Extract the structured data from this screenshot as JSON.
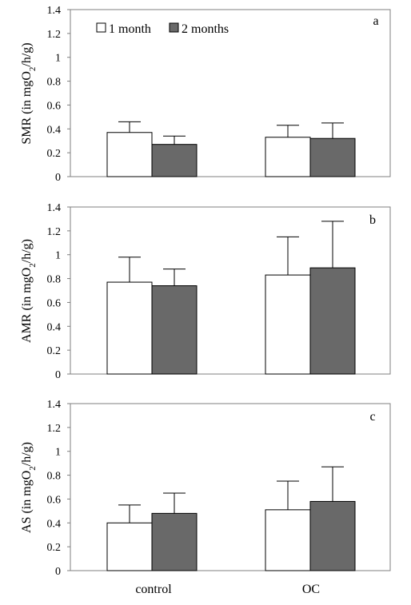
{
  "colors": {
    "one_month": "#ffffff",
    "two_months": "#696969",
    "axis": "#7f7f7f",
    "edge": "#000000"
  },
  "legend": {
    "placement": "top-left",
    "entries": [
      "1 month",
      "2 months"
    ]
  },
  "chart_data": [
    {
      "type": "bar",
      "panel_label": "a",
      "ylabel": "SMR (in mgO2/h/g)",
      "ylabel_parts": {
        "pre": "SMR (in mgO",
        "sub": "2",
        "post": "/h/g)"
      },
      "categories": [
        "control",
        "OC"
      ],
      "ylim": [
        0,
        1.4
      ],
      "yticks": [
        "0",
        "0.2",
        "0.4",
        "0.6",
        "0.8",
        "1",
        "1.2",
        "1.4"
      ],
      "series": [
        {
          "name": "1 month",
          "values": [
            0.37,
            0.33
          ],
          "errors": [
            0.09,
            0.1
          ]
        },
        {
          "name": "2 months",
          "values": [
            0.27,
            0.32
          ],
          "errors": [
            0.07,
            0.13
          ]
        }
      ]
    },
    {
      "type": "bar",
      "panel_label": "b",
      "ylabel": "AMR (in mgO2/h/g)",
      "ylabel_parts": {
        "pre": "AMR (in mgO",
        "sub": "2",
        "post": "/h/g)"
      },
      "categories": [
        "control",
        "OC"
      ],
      "ylim": [
        0,
        1.4
      ],
      "yticks": [
        "0",
        "0.2",
        "0.4",
        "0.6",
        "0.8",
        "1",
        "1.2",
        "1.4"
      ],
      "series": [
        {
          "name": "1 month",
          "values": [
            0.77,
            0.83
          ],
          "errors": [
            0.21,
            0.32
          ]
        },
        {
          "name": "2 months",
          "values": [
            0.74,
            0.89
          ],
          "errors": [
            0.14,
            0.39
          ]
        }
      ]
    },
    {
      "type": "bar",
      "panel_label": "c",
      "ylabel": "AS (in mgO2/h/g)",
      "ylabel_parts": {
        "pre": "AS (in mgO",
        "sub": "2",
        "post": "/h/g)"
      },
      "categories": [
        "control",
        "OC"
      ],
      "ylim": [
        0,
        1.4
      ],
      "yticks": [
        "0",
        "0.2",
        "0.4",
        "0.6",
        "0.8",
        "1",
        "1.2",
        "1.4"
      ],
      "series": [
        {
          "name": "1 month",
          "values": [
            0.4,
            0.51
          ],
          "errors": [
            0.15,
            0.24
          ]
        },
        {
          "name": "2 months",
          "values": [
            0.48,
            0.58
          ],
          "errors": [
            0.17,
            0.29
          ]
        }
      ]
    }
  ]
}
